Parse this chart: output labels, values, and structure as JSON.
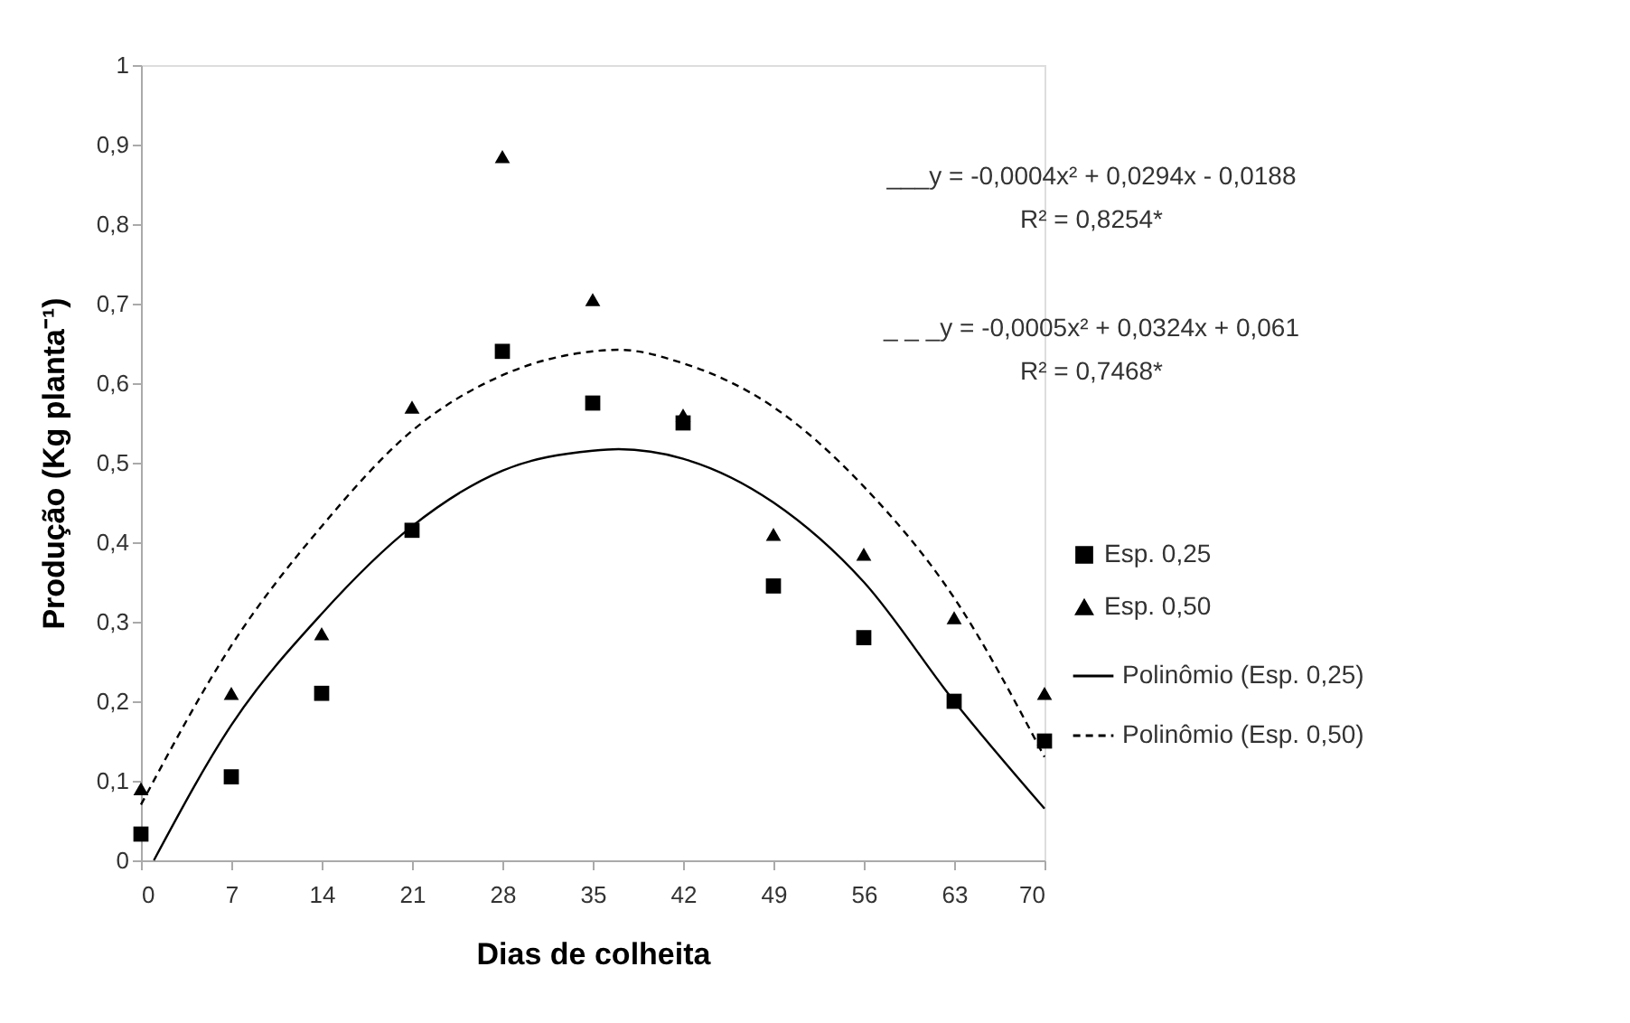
{
  "chart_data": {
    "type": "scatter",
    "xlabel": "Dias de colheita",
    "ylabel": "Produção (Kg planta⁻¹)",
    "xlim": [
      0,
      70
    ],
    "xticks": [
      0,
      7,
      14,
      21,
      28,
      35,
      42,
      49,
      56,
      63,
      70
    ],
    "ylim": [
      0,
      1
    ],
    "yticks": [
      0,
      {
        "value": 0.1,
        "label": "0,1"
      },
      {
        "value": 0.2,
        "label": "0,2"
      },
      {
        "value": 0.3,
        "label": "0,3"
      },
      {
        "value": 0.4,
        "label": "0,4"
      },
      {
        "value": 0.5,
        "label": "0,5"
      },
      {
        "value": 0.6,
        "label": "0,6"
      },
      {
        "value": 0.7,
        "label": "0,7"
      },
      {
        "value": 0.8,
        "label": "0,8"
      },
      {
        "value": 0.9,
        "label": "0,9"
      },
      1
    ],
    "grid": false,
    "legend": "right",
    "annotations": [
      "___y = -0,0004x² + 0,0294x - 0,0188",
      "R² = 0,8254*",
      "_ _ _y = -0,0005x² + 0,0324x + 0,061",
      "R² = 0,7468*"
    ],
    "x": [
      0,
      7,
      14,
      21,
      28,
      35,
      42,
      49,
      56,
      63,
      70
    ],
    "series": [
      {
        "name": "Esp. 0,25",
        "color": "#000000",
        "marker": "square",
        "values": [
          0.033,
          0.105,
          0.21,
          0.415,
          0.64,
          0.575,
          0.55,
          0.345,
          0.28,
          0.2,
          0.15
        ]
      },
      {
        "name": "Esp. 0,50",
        "color": "#000000",
        "marker": "triangle",
        "values": [
          0.09,
          0.21,
          0.285,
          0.57,
          0.885,
          0.705,
          0.56,
          0.41,
          0.385,
          0.305,
          0.21
        ]
      },
      {
        "name": "Polinômio (Esp. 0,25)",
        "type": "line",
        "color": "#000000",
        "line_style": "solid",
        "x": [
          1,
          7,
          14,
          21,
          28,
          35,
          37,
          42,
          49,
          56,
          63,
          70
        ],
        "values": [
          0,
          0.17,
          0.31,
          0.42,
          0.49,
          0.515,
          0.517,
          0.505,
          0.45,
          0.35,
          0.2,
          0.065
        ]
      },
      {
        "name": "Polinômio (Esp. 0,50)",
        "type": "line",
        "color": "#000000",
        "line_style": "dashed",
        "x": [
          0,
          7,
          14,
          21,
          28,
          35,
          37,
          42,
          49,
          56,
          63,
          70
        ],
        "values": [
          0.07,
          0.27,
          0.42,
          0.54,
          0.61,
          0.64,
          0.642,
          0.625,
          0.57,
          0.47,
          0.33,
          0.13
        ]
      }
    ]
  }
}
